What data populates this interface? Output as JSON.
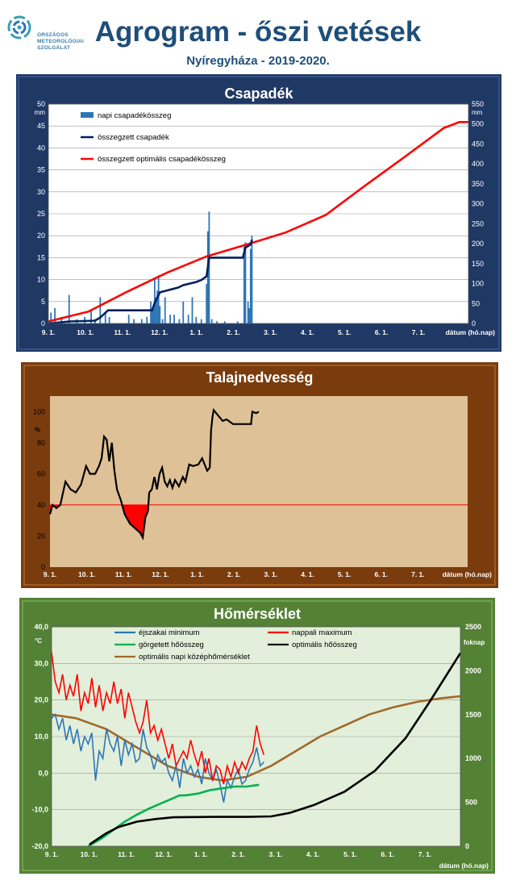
{
  "header": {
    "logo_text": [
      "ORSZÁGOS",
      "METEOROLÓGIAI",
      "SZOLGÁLAT"
    ],
    "title": "Agrogram - őszi vetések",
    "subtitle": "Nyíregyháza  - 2019-2020."
  },
  "colors": {
    "header_blue": "#1f4e79",
    "precip_frame": "#1f3864",
    "soil_frame": "#7a3c0c",
    "temp_frame": "#548235",
    "daily_precip": "#2e75b6",
    "cum_precip": "#002060",
    "optimal_precip": "#ff0000",
    "soil_line": "#000000",
    "night_min": "#2e75b6",
    "day_max": "#ff0000",
    "rolling_heat": "#00b050",
    "optimal_heat": "#000000",
    "optimal_mean": "#a0692a"
  },
  "chart_data": [
    {
      "type": "bar+line",
      "title": "Csapadék",
      "y_left_unit": "mm",
      "y_right_unit": "mm",
      "ylim_left": [
        0,
        50
      ],
      "ylim_right": [
        0,
        550
      ],
      "y_left_ticks": [
        "0",
        "5",
        "10",
        "15",
        "20",
        "25",
        "30",
        "35",
        "40",
        "45",
        "50"
      ],
      "y_right_ticks": [
        "0",
        "50",
        "100",
        "150",
        "200",
        "250",
        "300",
        "350",
        "400",
        "450",
        "500",
        "550"
      ],
      "x_ticks": [
        "9. 1.",
        "10. 1.",
        "11. 1.",
        "12. 1.",
        "1. 1.",
        "2. 1.",
        "3. 1.",
        "4. 1.",
        "5. 1.",
        "6. 1.",
        "7. 1."
      ],
      "xlabel": "dátum (hó.nap)",
      "legend": [
        "napi csapadékösszeg",
        "összegzett csapadék",
        "összegzett optimális csapadékösszeg"
      ],
      "x_range_days": [
        0,
        324
      ],
      "daily_precip": [
        [
          2,
          2.5
        ],
        [
          5,
          3.5
        ],
        [
          10,
          1.5
        ],
        [
          16,
          6.5
        ],
        [
          22,
          1
        ],
        [
          28,
          1.5
        ],
        [
          33,
          3
        ],
        [
          36,
          1
        ],
        [
          40,
          6
        ],
        [
          44,
          2.5
        ],
        [
          47,
          1.5
        ],
        [
          62,
          2
        ],
        [
          66,
          1
        ],
        [
          72,
          1
        ],
        [
          76,
          1.5
        ],
        [
          79,
          5
        ],
        [
          80,
          3
        ],
        [
          81,
          4
        ],
        [
          82,
          10.5
        ],
        [
          83,
          6
        ],
        [
          84,
          7.5
        ],
        [
          85,
          11
        ],
        [
          86,
          4
        ],
        [
          88,
          1
        ],
        [
          90,
          6
        ],
        [
          94,
          2
        ],
        [
          97,
          2
        ],
        [
          101,
          1
        ],
        [
          104,
          5
        ],
        [
          108,
          2
        ],
        [
          111,
          6
        ],
        [
          114,
          1.5
        ],
        [
          118,
          1
        ],
        [
          122,
          9
        ],
        [
          123,
          21
        ],
        [
          124,
          25.5
        ],
        [
          126,
          1
        ],
        [
          130,
          0.5
        ],
        [
          136,
          0.5
        ],
        [
          146,
          0.5
        ],
        [
          151,
          17.5
        ],
        [
          152,
          18.5
        ],
        [
          154,
          5
        ],
        [
          155,
          3.5
        ],
        [
          156,
          17
        ],
        [
          157,
          20
        ]
      ],
      "cumulative_precip": [
        [
          0,
          0
        ],
        [
          16,
          5
        ],
        [
          36,
          7
        ],
        [
          40,
          15
        ],
        [
          46,
          33
        ],
        [
          80,
          33
        ],
        [
          82,
          52
        ],
        [
          86,
          78
        ],
        [
          100,
          90
        ],
        [
          104,
          96
        ],
        [
          114,
          104
        ],
        [
          118,
          109
        ],
        [
          122,
          118
        ],
        [
          124,
          165
        ],
        [
          150,
          165
        ],
        [
          152,
          190
        ],
        [
          156,
          198
        ],
        [
          157,
          210
        ]
      ],
      "optimal_cumulative_precip": [
        [
          0,
          5
        ],
        [
          31,
          30
        ],
        [
          61,
          80
        ],
        [
          92,
          128
        ],
        [
          122,
          168
        ],
        [
          153,
          198
        ],
        [
          183,
          228
        ],
        [
          214,
          272
        ],
        [
          244,
          345
        ],
        [
          275,
          418
        ],
        [
          305,
          490
        ],
        [
          317,
          505
        ],
        [
          324,
          505
        ]
      ]
    },
    {
      "type": "line",
      "title": "Talajnedvesség",
      "y_unit": "%",
      "ylim": [
        0,
        110
      ],
      "y_ticks": [
        "0",
        "20",
        "40",
        "60",
        "80",
        "100"
      ],
      "x_ticks": [
        "9. 1.",
        "10. 1.",
        "11. 1.",
        "12. 1.",
        "1. 1.",
        "2. 1.",
        "3. 1.",
        "4. 1.",
        "5. 1.",
        "6. 1.",
        "7. 1."
      ],
      "xlabel": "dátum (hó.nap)",
      "threshold": 40,
      "x_range_days": [
        0,
        324
      ],
      "soil_moisture": [
        [
          0,
          34
        ],
        [
          2,
          40
        ],
        [
          5,
          38
        ],
        [
          8,
          40
        ],
        [
          12,
          55
        ],
        [
          16,
          50
        ],
        [
          20,
          48
        ],
        [
          24,
          53
        ],
        [
          28,
          65
        ],
        [
          31,
          60
        ],
        [
          35,
          60
        ],
        [
          38,
          65
        ],
        [
          40,
          70
        ],
        [
          42,
          84
        ],
        [
          44,
          82
        ],
        [
          46,
          68
        ],
        [
          48,
          80
        ],
        [
          50,
          62
        ],
        [
          52,
          50
        ],
        [
          55,
          43
        ],
        [
          58,
          34
        ],
        [
          62,
          28
        ],
        [
          66,
          25
        ],
        [
          70,
          22
        ],
        [
          72,
          19
        ],
        [
          74,
          32
        ],
        [
          76,
          36
        ],
        [
          77,
          48
        ],
        [
          79,
          50
        ],
        [
          81,
          58
        ],
        [
          83,
          50
        ],
        [
          85,
          60
        ],
        [
          87,
          64
        ],
        [
          89,
          55
        ],
        [
          91,
          52
        ],
        [
          93,
          56
        ],
        [
          95,
          51
        ],
        [
          97,
          56
        ],
        [
          100,
          52
        ],
        [
          103,
          58
        ],
        [
          105,
          55
        ],
        [
          108,
          66
        ],
        [
          111,
          65
        ],
        [
          115,
          66
        ],
        [
          118,
          70
        ],
        [
          122,
          62
        ],
        [
          124,
          64
        ],
        [
          125,
          88
        ],
        [
          126,
          96
        ],
        [
          127,
          101
        ],
        [
          131,
          97
        ],
        [
          134,
          94
        ],
        [
          137,
          95
        ],
        [
          142,
          92
        ],
        [
          150,
          92
        ],
        [
          156,
          92
        ],
        [
          157,
          100
        ],
        [
          160,
          99
        ],
        [
          162,
          100
        ]
      ]
    },
    {
      "type": "line",
      "title": "Hőmérséklet",
      "y_left_unit": "°C",
      "y_right_unit": "foknap",
      "ylim_left": [
        -20,
        40
      ],
      "ylim_right": [
        0,
        2500
      ],
      "y_left_ticks": [
        "-20,0",
        "-10,0",
        "0,0",
        "10,0",
        "20,0",
        "30,0",
        "40,0"
      ],
      "y_right_ticks": [
        "0",
        "500",
        "1000",
        "1500",
        "2000",
        "2500"
      ],
      "x_ticks": [
        "9. 1.",
        "10. 1.",
        "11. 1.",
        "12. 1.",
        "1. 1.",
        "2. 1.",
        "3. 1.",
        "4. 1.",
        "5. 1.",
        "6. 1.",
        "7. 1."
      ],
      "xlabel": "dátum (hó.nap)",
      "legend": [
        "éjszakai minimum",
        "nappali maximum",
        "görgetett hőösszeg",
        "optimális hőösszeg",
        "optimális napi középhőmérséklet"
      ],
      "x_range_days": [
        0,
        335
      ],
      "night_min": [
        [
          0,
          15
        ],
        [
          3,
          16
        ],
        [
          6,
          12
        ],
        [
          9,
          15
        ],
        [
          12,
          9
        ],
        [
          15,
          13
        ],
        [
          18,
          8
        ],
        [
          21,
          12
        ],
        [
          24,
          6
        ],
        [
          27,
          10
        ],
        [
          30,
          8
        ],
        [
          33,
          11
        ],
        [
          36,
          -2
        ],
        [
          39,
          6
        ],
        [
          42,
          4
        ],
        [
          45,
          12
        ],
        [
          48,
          8
        ],
        [
          51,
          6
        ],
        [
          54,
          10
        ],
        [
          57,
          2
        ],
        [
          60,
          9
        ],
        [
          63,
          5
        ],
        [
          66,
          8
        ],
        [
          69,
          3
        ],
        [
          72,
          4
        ],
        [
          75,
          12
        ],
        [
          78,
          7
        ],
        [
          81,
          5
        ],
        [
          84,
          1
        ],
        [
          87,
          5
        ],
        [
          90,
          3
        ],
        [
          93,
          4
        ],
        [
          96,
          0
        ],
        [
          99,
          -2
        ],
        [
          102,
          2
        ],
        [
          105,
          -4
        ],
        [
          108,
          4
        ],
        [
          111,
          0
        ],
        [
          114,
          2
        ],
        [
          117,
          -1
        ],
        [
          120,
          1
        ],
        [
          123,
          -3
        ],
        [
          126,
          4
        ],
        [
          129,
          0
        ],
        [
          132,
          -2
        ],
        [
          135,
          1
        ],
        [
          138,
          -3
        ],
        [
          141,
          -8
        ],
        [
          144,
          -2
        ],
        [
          147,
          -4
        ],
        [
          150,
          -1
        ],
        [
          153,
          1
        ],
        [
          156,
          -3
        ],
        [
          159,
          -2
        ],
        [
          162,
          1
        ],
        [
          165,
          3
        ],
        [
          168,
          7
        ],
        [
          171,
          2
        ],
        [
          174,
          3
        ]
      ],
      "day_max": [
        [
          0,
          33
        ],
        [
          3,
          25
        ],
        [
          6,
          22
        ],
        [
          9,
          27
        ],
        [
          12,
          20
        ],
        [
          15,
          24
        ],
        [
          18,
          21
        ],
        [
          21,
          27
        ],
        [
          24,
          17
        ],
        [
          27,
          22
        ],
        [
          30,
          19
        ],
        [
          33,
          26
        ],
        [
          36,
          18
        ],
        [
          39,
          24
        ],
        [
          42,
          17
        ],
        [
          45,
          22
        ],
        [
          48,
          19
        ],
        [
          51,
          25
        ],
        [
          54,
          19
        ],
        [
          57,
          23
        ],
        [
          60,
          15
        ],
        [
          63,
          22
        ],
        [
          66,
          18
        ],
        [
          69,
          14
        ],
        [
          72,
          11
        ],
        [
          75,
          14
        ],
        [
          78,
          20
        ],
        [
          81,
          11
        ],
        [
          84,
          13
        ],
        [
          87,
          9
        ],
        [
          90,
          12
        ],
        [
          93,
          8
        ],
        [
          96,
          4
        ],
        [
          99,
          8
        ],
        [
          102,
          2
        ],
        [
          105,
          4
        ],
        [
          108,
          6
        ],
        [
          111,
          4
        ],
        [
          114,
          9
        ],
        [
          117,
          5
        ],
        [
          120,
          2
        ],
        [
          123,
          6
        ],
        [
          126,
          0
        ],
        [
          129,
          4
        ],
        [
          132,
          -2
        ],
        [
          135,
          2
        ],
        [
          138,
          1
        ],
        [
          141,
          -3
        ],
        [
          144,
          2
        ],
        [
          147,
          -1
        ],
        [
          150,
          3
        ],
        [
          153,
          0
        ],
        [
          156,
          3
        ],
        [
          159,
          1
        ],
        [
          162,
          4
        ],
        [
          165,
          6
        ],
        [
          168,
          13
        ],
        [
          171,
          8
        ],
        [
          174,
          5
        ]
      ],
      "rolling_heat_sum": [
        [
          30,
          0
        ],
        [
          40,
          80
        ],
        [
          50,
          180
        ],
        [
          60,
          280
        ],
        [
          70,
          360
        ],
        [
          80,
          430
        ],
        [
          90,
          490
        ],
        [
          100,
          550
        ],
        [
          105,
          580
        ],
        [
          110,
          580
        ],
        [
          120,
          600
        ],
        [
          130,
          640
        ],
        [
          140,
          660
        ],
        [
          150,
          680
        ],
        [
          160,
          680
        ],
        [
          165,
          690
        ],
        [
          170,
          700
        ]
      ],
      "optimal_heat_sum": [
        [
          31,
          20
        ],
        [
          45,
          150
        ],
        [
          55,
          220
        ],
        [
          70,
          280
        ],
        [
          85,
          310
        ],
        [
          100,
          330
        ],
        [
          130,
          335
        ],
        [
          160,
          335
        ],
        [
          180,
          340
        ],
        [
          195,
          380
        ],
        [
          215,
          470
        ],
        [
          240,
          620
        ],
        [
          265,
          860
        ],
        [
          290,
          1230
        ],
        [
          310,
          1650
        ],
        [
          335,
          2200
        ]
      ],
      "optimal_daily_mean": [
        [
          0,
          16
        ],
        [
          20,
          15
        ],
        [
          45,
          12
        ],
        [
          70,
          7
        ],
        [
          95,
          2
        ],
        [
          120,
          -1
        ],
        [
          140,
          -2
        ],
        [
          160,
          -1
        ],
        [
          180,
          2
        ],
        [
          200,
          6
        ],
        [
          220,
          10
        ],
        [
          240,
          13
        ],
        [
          260,
          16
        ],
        [
          280,
          18
        ],
        [
          300,
          19.5
        ],
        [
          320,
          20.5
        ],
        [
          335,
          21
        ]
      ]
    }
  ]
}
